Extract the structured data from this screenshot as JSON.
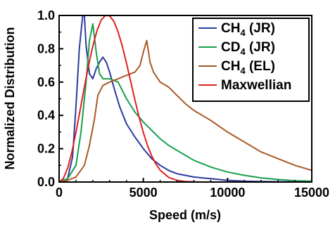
{
  "chart_data": {
    "type": "line",
    "xlabel": "Speed (m/s)",
    "ylabel": "Normalized Distribution",
    "xlim": [
      0,
      15000
    ],
    "ylim": [
      0,
      1.0
    ],
    "x_ticks": [
      "0",
      "5000",
      "10000",
      "15000"
    ],
    "y_ticks": [
      "0.0",
      "0.2",
      "0.4",
      "0.6",
      "0.8",
      "1.0"
    ],
    "grid": false,
    "legend_position": "top-right",
    "series": [
      {
        "name": "CH4 (JR)",
        "label_main": "CH",
        "label_sub": "4",
        "label_rest": " (JR)",
        "color": "#2b3a9e",
        "x": [
          0,
          500,
          800,
          1000,
          1200,
          1400,
          1500,
          1600,
          1800,
          2000,
          2200,
          2400,
          2600,
          2800,
          3000,
          3300,
          3600,
          4000,
          4500,
          5000,
          5500,
          6000,
          6500,
          7000,
          8000,
          9000,
          10000,
          11000,
          12000,
          13000,
          15000
        ],
        "y": [
          0,
          0.02,
          0.15,
          0.45,
          0.8,
          1.0,
          1.0,
          0.82,
          0.65,
          0.62,
          0.68,
          0.72,
          0.75,
          0.72,
          0.66,
          0.55,
          0.45,
          0.35,
          0.27,
          0.2,
          0.14,
          0.1,
          0.07,
          0.05,
          0.03,
          0.02,
          0.01,
          0.005,
          0.003,
          0.002,
          0.0
        ]
      },
      {
        "name": "CD4 (JR)",
        "label_main": "CD",
        "label_sub": "4",
        "label_rest": " (JR)",
        "color": "#1a9e50",
        "x": [
          0,
          500,
          1000,
          1300,
          1600,
          1800,
          2000,
          2200,
          2400,
          2600,
          3000,
          3500,
          4000,
          4500,
          5000,
          5500,
          6000,
          6500,
          7000,
          7500,
          8000,
          9000,
          10000,
          11000,
          12000,
          13000,
          14000,
          15000
        ],
        "y": [
          0,
          0.02,
          0.1,
          0.3,
          0.6,
          0.85,
          0.95,
          0.78,
          0.65,
          0.62,
          0.62,
          0.6,
          0.5,
          0.42,
          0.36,
          0.31,
          0.26,
          0.22,
          0.19,
          0.16,
          0.13,
          0.09,
          0.06,
          0.04,
          0.025,
          0.015,
          0.008,
          0.005
        ]
      },
      {
        "name": "CH4 (EL)",
        "label_main": "CH",
        "label_sub": "4",
        "label_rest": " (EL)",
        "color": "#a85a28",
        "x": [
          0,
          500,
          1000,
          1500,
          1800,
          2100,
          2300,
          2600,
          3000,
          3500,
          4000,
          4500,
          4800,
          5000,
          5200,
          5400,
          5600,
          6000,
          6500,
          7000,
          7500,
          8000,
          9000,
          10000,
          11000,
          12000,
          13000,
          14000,
          15000
        ],
        "y": [
          0,
          0.01,
          0.03,
          0.1,
          0.22,
          0.38,
          0.52,
          0.58,
          0.6,
          0.62,
          0.64,
          0.66,
          0.7,
          0.78,
          0.85,
          0.72,
          0.66,
          0.6,
          0.57,
          0.52,
          0.47,
          0.43,
          0.37,
          0.3,
          0.24,
          0.18,
          0.14,
          0.1,
          0.07
        ]
      },
      {
        "name": "Maxwellian",
        "label_main": "Maxwellian",
        "label_sub": "",
        "label_rest": "",
        "color": "#e02020",
        "x": [
          0,
          250,
          500,
          750,
          1000,
          1250,
          1500,
          1750,
          2000,
          2250,
          2500,
          2750,
          3000,
          3250,
          3500,
          3750,
          4000,
          4250,
          4500,
          4750,
          5000,
          5250,
          5500,
          5750,
          6000,
          6500,
          7000,
          7500,
          8000,
          8500
        ],
        "y": [
          0,
          0.021,
          0.082,
          0.177,
          0.298,
          0.433,
          0.571,
          0.701,
          0.816,
          0.909,
          0.973,
          1.0,
          0.998,
          0.964,
          0.901,
          0.815,
          0.714,
          0.604,
          0.493,
          0.389,
          0.297,
          0.219,
          0.156,
          0.107,
          0.071,
          0.028,
          0.01,
          0.003,
          0.001,
          0.0
        ]
      }
    ]
  }
}
